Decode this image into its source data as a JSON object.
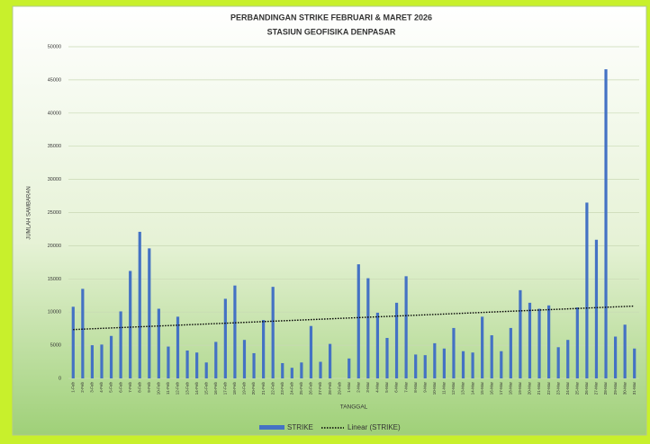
{
  "chart_data": {
    "type": "bar",
    "title": [
      "PERBANDINGAN STRIKE FEBRUARI & MARET 2026",
      "STASIUN GEOFISIKA DENPASAR"
    ],
    "x_label": "TANGGAL",
    "y_label": "JUMLAH SAMBARAN",
    "categories": [
      "1-Feb",
      "2-Feb",
      "3-Feb",
      "4-Feb",
      "5-Feb",
      "6-Feb",
      "7-Feb",
      "8-Feb",
      "9-Feb",
      "10-Feb",
      "11-Feb",
      "12-Feb",
      "13-Feb",
      "14-Feb",
      "15-Feb",
      "16-Feb",
      "17-Feb",
      "18-Feb",
      "19-Feb",
      "20-Feb",
      "21-Feb",
      "22-Feb",
      "23-Feb",
      "24-Feb",
      "25-Feb",
      "26-Feb",
      "27-Feb",
      "28-Feb",
      "29-Feb",
      "1-Mar",
      "2-Mar",
      "3-Mar",
      "4-Mar",
      "5-Mar",
      "6-Mar",
      "7-Mar",
      "8-Mar",
      "9-Mar",
      "10-Mar",
      "11-Mar",
      "12-Mar",
      "13-Mar",
      "14-Mar",
      "15-Mar",
      "16-Mar",
      "17-Mar",
      "18-Mar",
      "19-Mar",
      "20-Mar",
      "21-Mar",
      "22-Mar",
      "23-Mar",
      "24-Mar",
      "25-Mar",
      "26-Mar",
      "27-Mar",
      "28-Mar",
      "29-Mar",
      "30-Mar",
      "31-Mar"
    ],
    "series": [
      {
        "name": "STRIKE",
        "color": "#4472c4",
        "values": [
          10800,
          13500,
          5000,
          5100,
          6400,
          10100,
          16200,
          22100,
          19600,
          10500,
          4800,
          9300,
          4200,
          3900,
          2400,
          5500,
          12000,
          14000,
          5800,
          3800,
          8800,
          13800,
          2300,
          1600,
          2400,
          7900,
          2500,
          5200,
          0,
          3000,
          17200,
          15100,
          9900,
          6100,
          11400,
          15400,
          3600,
          3500,
          5300,
          4500,
          7600,
          4100,
          3900,
          9300,
          6500,
          4100,
          7600,
          13300,
          11400,
          10500,
          11000,
          4700,
          5800,
          10700,
          26500,
          20900,
          46600,
          6300,
          8100,
          4500
        ]
      }
    ],
    "trendline": {
      "name": "Linear (STRIKE)",
      "color": "#000000"
    },
    "ylim": [
      0,
      50000
    ],
    "yticks": [
      0,
      5000,
      10000,
      15000,
      20000,
      25000,
      30000,
      35000,
      40000,
      45000,
      50000
    ],
    "grid": true,
    "legend": "bottom"
  }
}
